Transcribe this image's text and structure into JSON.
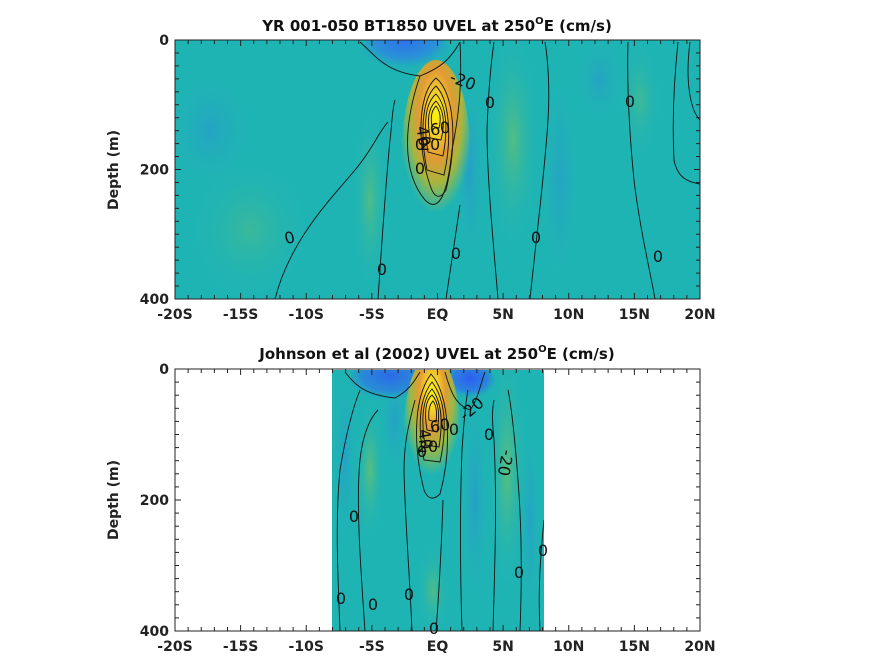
{
  "colors": {
    "background": "#1fb4b4",
    "warm_low": "#8dbf4f",
    "warm_mid": "#e0a030",
    "warm_peak": "#f9f50e",
    "cold": "#2f73ea",
    "contour": "#111111"
  },
  "chart_data": [
    {
      "type": "heatmap",
      "title": "YR 001-050 BT1850 UVEL at 250",
      "title_sup": "O",
      "title_suffix": "E (cm/s)",
      "xlabel": "",
      "ylabel": "Depth (m)",
      "xlim": [
        -20,
        20
      ],
      "ylim": [
        0,
        400
      ],
      "y_reversed": true,
      "x_ticks": [
        -20,
        -15,
        -10,
        -5,
        0,
        5,
        10,
        15,
        20
      ],
      "x_tick_labels": [
        "-20S",
        "-15S",
        "-10S",
        "-5S",
        "EQ",
        "5N",
        "10N",
        "15N",
        "20N"
      ],
      "y_ticks": [
        0,
        200,
        400
      ],
      "y_tick_labels": [
        "0",
        "200",
        "400"
      ],
      "data_x_extent": [
        -20,
        20
      ],
      "features": [
        {
          "kind": "jet",
          "name": "undercurrent core",
          "lat": -0.2,
          "depth": 115,
          "max_speed": 60
        },
        {
          "kind": "westward",
          "lat": -2.5,
          "depth": 30,
          "speed": -20
        },
        {
          "kind": "eastward_band",
          "lat": 6,
          "depth": 150,
          "speed": 5
        }
      ],
      "contour_labels": [
        "-20",
        "0",
        "0",
        "0",
        "0",
        "0",
        "0",
        "0",
        "0",
        "0",
        "60",
        "40",
        "20"
      ]
    },
    {
      "type": "heatmap",
      "title": "Johnson et al (2002) UVEL at 250",
      "title_sup": "O",
      "title_suffix": "E (cm/s)",
      "xlabel": "",
      "ylabel": "Depth (m)",
      "xlim": [
        -20,
        20
      ],
      "ylim": [
        0,
        400
      ],
      "y_reversed": true,
      "x_ticks": [
        -20,
        -15,
        -10,
        -5,
        0,
        5,
        10,
        15,
        20
      ],
      "x_tick_labels": [
        "-20S",
        "-15S",
        "-10S",
        "-5S",
        "EQ",
        "5N",
        "10N",
        "15N",
        "20N"
      ],
      "y_ticks": [
        0,
        200,
        400
      ],
      "y_tick_labels": [
        "0",
        "200",
        "400"
      ],
      "data_x_extent": [
        -8,
        8
      ],
      "features": [
        {
          "kind": "jet",
          "name": "undercurrent core",
          "lat": -0.3,
          "depth": 70,
          "max_speed": 80
        },
        {
          "kind": "westward",
          "lat": 1.8,
          "depth": 20,
          "speed": -30
        },
        {
          "kind": "eastward_band",
          "lat": 5.2,
          "depth": 160,
          "speed": 10
        }
      ],
      "contour_labels": [
        "-20",
        "-20",
        "0",
        "0",
        "0",
        "0",
        "0",
        "0",
        "0",
        "0",
        "0",
        "0",
        "60",
        "40",
        "20"
      ]
    }
  ]
}
